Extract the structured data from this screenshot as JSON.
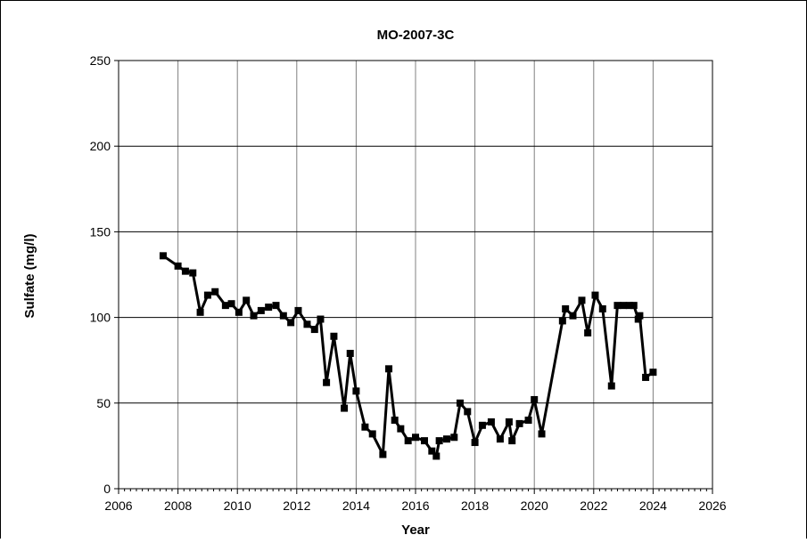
{
  "chart_data": {
    "type": "line",
    "title": "MO-2007-3C",
    "xlabel": "Year",
    "ylabel": "Sulfate (mg/l)",
    "xlim": [
      2006,
      2026
    ],
    "ylim": [
      0,
      250
    ],
    "x_ticks": [
      2006,
      2008,
      2010,
      2012,
      2014,
      2016,
      2018,
      2020,
      2022,
      2024,
      2026
    ],
    "y_ticks": [
      0,
      50,
      100,
      150,
      200,
      250
    ],
    "grid": true,
    "legend": "none",
    "marker": "square",
    "line_color": "#000000",
    "series": [
      {
        "x": [
          2007.5,
          2008.0,
          2008.25,
          2008.5,
          2008.75,
          2009.0,
          2009.25,
          2009.6,
          2009.8,
          2010.05,
          2010.3,
          2010.55,
          2010.8,
          2011.05,
          2011.3,
          2011.55,
          2011.8,
          2012.05,
          2012.35,
          2012.6,
          2012.8,
          2013.0,
          2013.25,
          2013.6,
          2013.8,
          2014.0,
          2014.3,
          2014.55,
          2014.9,
          2015.1,
          2015.3,
          2015.5,
          2015.75,
          2016.0,
          2016.3,
          2016.55,
          2016.7,
          2016.8,
          2017.05,
          2017.3,
          2017.5,
          2017.75,
          2018.0,
          2018.25,
          2018.55,
          2018.85,
          2019.15,
          2019.25,
          2019.5,
          2019.8,
          2020.0,
          2020.25,
          2020.95,
          2021.05,
          2021.3,
          2021.6,
          2021.8,
          2022.05,
          2022.3,
          2022.6,
          2022.8,
          2023.0,
          2023.2,
          2023.35,
          2023.5,
          2023.55,
          2023.75,
          2024.0
        ],
        "y": [
          136,
          130,
          127,
          126,
          103,
          113,
          115,
          107,
          108,
          103,
          110,
          101,
          104,
          106,
          107,
          101,
          97,
          104,
          96,
          93,
          99,
          62,
          89,
          47,
          79,
          57,
          36,
          32,
          20,
          70,
          40,
          35,
          28,
          30,
          28,
          22,
          19,
          28,
          29,
          30,
          50,
          45,
          27,
          37,
          39,
          29,
          39,
          28,
          38,
          40,
          52,
          32,
          98,
          105,
          101,
          110,
          91,
          113,
          105,
          60,
          107,
          107,
          107,
          107,
          99,
          101,
          65,
          68
        ]
      }
    ]
  }
}
